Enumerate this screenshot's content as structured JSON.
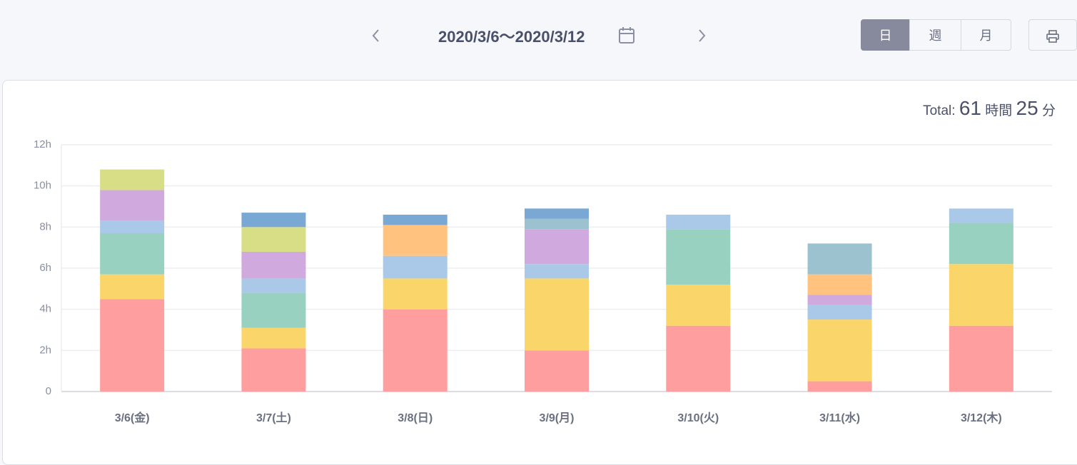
{
  "header": {
    "date_range": "2020/3/6〜2020/3/12",
    "views": [
      "日",
      "週",
      "月"
    ]
  },
  "total": {
    "label": "Total:",
    "hours": 61,
    "hours_unit": "時間",
    "minutes": 25,
    "minutes_unit": "分"
  },
  "chart_data": {
    "type": "stacked_bar",
    "categories": [
      "3/6(金)",
      "3/7(土)",
      "3/8(日)",
      "3/9(月)",
      "3/10(火)",
      "3/11(水)",
      "3/12(木)"
    ],
    "series": [
      {
        "color": "#ff9e9e",
        "values": [
          4.5,
          2.1,
          4.0,
          2.0,
          3.2,
          0.5,
          3.2
        ]
      },
      {
        "color": "#fad66a",
        "values": [
          1.2,
          1.0,
          1.5,
          3.5,
          2.0,
          3.0,
          3.0
        ]
      },
      {
        "color": "#99d1c0",
        "values": [
          2.0,
          1.7,
          null,
          null,
          2.7,
          null,
          2.0
        ]
      },
      {
        "color": "#aac8e8",
        "values": [
          0.6,
          0.7,
          1.1,
          0.7,
          0.7,
          0.7,
          0.7
        ]
      },
      {
        "color": "#d0aadf",
        "values": [
          1.5,
          1.3,
          null,
          1.7,
          null,
          0.5,
          null
        ]
      },
      {
        "color": "#ffc37f",
        "values": [
          null,
          null,
          1.5,
          null,
          null,
          1.0,
          null
        ]
      },
      {
        "color": "#d7de86",
        "values": [
          1.0,
          1.2,
          null,
          null,
          null,
          null,
          null
        ]
      },
      {
        "color": "#9dc2cf",
        "values": [
          null,
          null,
          null,
          0.5,
          null,
          1.5,
          null
        ]
      },
      {
        "color": "#7aa8d4",
        "values": [
          null,
          0.7,
          0.5,
          0.5,
          null,
          null,
          null
        ]
      }
    ],
    "ylim": [
      0,
      12
    ],
    "yticks": [
      0,
      {
        "value": 2,
        "label": "2h"
      },
      {
        "value": 4,
        "label": "4h"
      },
      {
        "value": 6,
        "label": "6h"
      },
      {
        "value": 8,
        "label": "8h"
      },
      {
        "value": 10,
        "label": "10h"
      },
      {
        "value": 12,
        "label": "12h"
      }
    ],
    "grid": true
  }
}
